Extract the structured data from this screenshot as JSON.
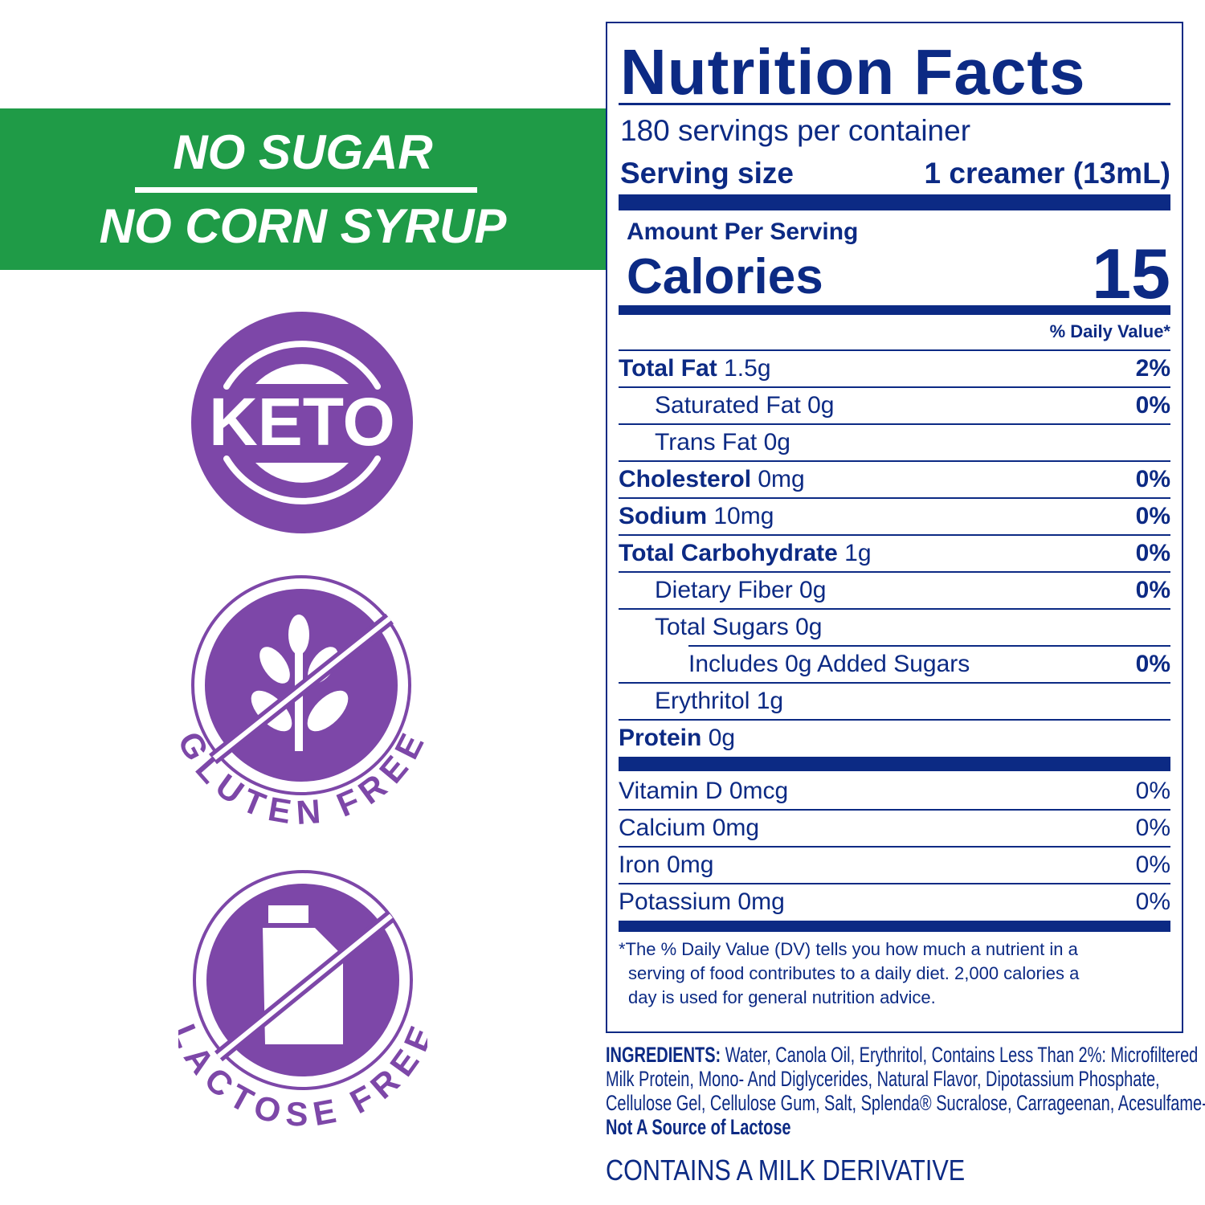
{
  "banner": {
    "line1": "NO SUGAR",
    "line2": "NO CORN SYRUP",
    "color": "#1f9b47"
  },
  "badges": {
    "color": "#7d47a8",
    "keto": "KETO",
    "gluten_free": "GLUTEN FREE",
    "lactose_free": "LACTOSE FREE",
    "gluten_icon": "wheat-icon",
    "lactose_icon": "milk-carton-icon"
  },
  "nutrition": {
    "title": "Nutrition Facts",
    "servings": "180 servings per container",
    "serving_size_label": "Serving size",
    "serving_size_value": "1 creamer (13mL)",
    "amount_per_serving": "Amount Per Serving",
    "calories_label": "Calories",
    "calories_value": "15",
    "dv_header": "% Daily Value*",
    "rows": [
      {
        "name": "Total Fat",
        "amount": " 1.5g",
        "dv": "2%"
      },
      {
        "name": "Saturated Fat 0g",
        "amount": "",
        "dv": "0%"
      },
      {
        "name": "Trans Fat 0g",
        "amount": "",
        "dv": ""
      },
      {
        "name": "Cholesterol",
        "amount": " 0mg",
        "dv": "0%"
      },
      {
        "name": "Sodium",
        "amount": " 10mg",
        "dv": "0%"
      },
      {
        "name": "Total Carbohydrate",
        "amount": " 1g",
        "dv": "0%"
      },
      {
        "name": "Dietary Fiber 0g",
        "amount": "",
        "dv": "0%"
      },
      {
        "name": "Total Sugars 0g",
        "amount": "",
        "dv": ""
      },
      {
        "name": "Includes 0g Added Sugars",
        "amount": "",
        "dv": "0%"
      },
      {
        "name": "Erythritol 1g",
        "amount": "",
        "dv": ""
      },
      {
        "name": "Protein",
        "amount": " 0g",
        "dv": ""
      }
    ],
    "vitamins": [
      {
        "name": "Vitamin D 0mcg",
        "dv": "0%"
      },
      {
        "name": "Calcium 0mg",
        "dv": "0%"
      },
      {
        "name": "Iron 0mg",
        "dv": "0%"
      },
      {
        "name": "Potassium 0mg",
        "dv": "0%"
      }
    ],
    "footnote": [
      "*The % Daily Value (DV) tells you how much a nutrient in a",
      "serving of food contributes to a daily diet. 2,000 calories a",
      "day is used for general nutrition advice."
    ],
    "color": "#0c2a84"
  },
  "ingredients": {
    "label": "INGREDIENTS:",
    "lines": [
      " Water, Canola Oil, Erythritol, Contains Less Than 2%: Microfiltered",
      "Milk Protein, Mono- And Diglycerides, Natural Flavor, Dipotassium Phosphate,",
      "Cellulose Gel, Cellulose Gum, Salt, Splenda® Sucralose, Carrageenan, Acesulfame-K."
    ],
    "note": "Not A Source of Lactose",
    "allergen": "CONTAINS A MILK DERIVATIVE"
  }
}
